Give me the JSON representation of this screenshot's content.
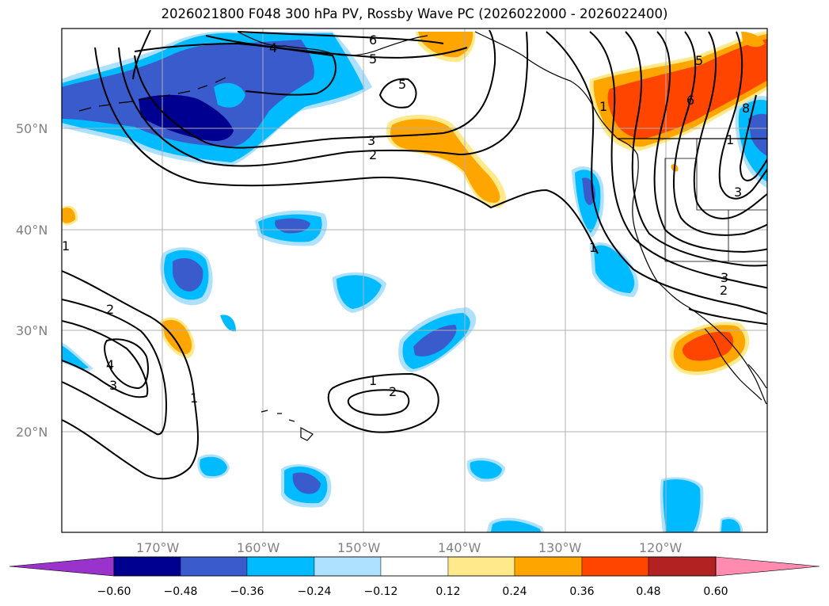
{
  "title": "2026021800 F048 300 hPa PV, Rossby Wave PC (2026022000 - 2026022400)",
  "map": {
    "lat_labels": [
      "50°N",
      "40°N",
      "30°N",
      "20°N"
    ],
    "lon_labels": [
      "170°W",
      "160°W",
      "150°W",
      "140°W",
      "130°W",
      "120°W"
    ],
    "contour_labels": [
      "6",
      "5",
      "4",
      "5",
      "3",
      "2",
      "1",
      "5",
      "6",
      "8",
      "1",
      "3",
      "2",
      "3",
      "1",
      "2",
      "4",
      "3",
      "1",
      "1",
      "2",
      "1"
    ]
  },
  "colorbar": {
    "ticks": [
      "−0.60",
      "−0.48",
      "−0.36",
      "−0.24",
      "−0.12",
      "0.12",
      "0.24",
      "0.36",
      "0.48",
      "0.60"
    ],
    "colors": [
      "#9933cc",
      "#000090",
      "#3a5bcc",
      "#00bbff",
      "#aee0ff",
      "#ffffff",
      "#ffe98a",
      "#ffa500",
      "#ff4500",
      "#b22222",
      "#ff8cae"
    ]
  }
}
